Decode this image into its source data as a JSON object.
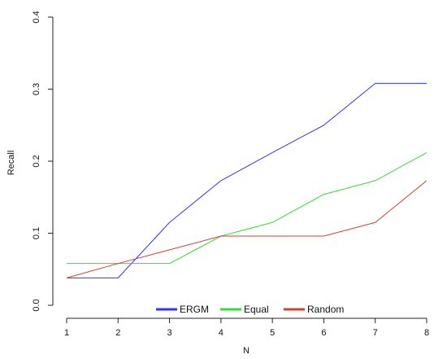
{
  "chart_data": {
    "type": "line",
    "xlabel": "N",
    "ylabel": "Recall",
    "x": [
      1,
      2,
      3,
      4,
      5,
      6,
      7,
      8
    ],
    "x_tick_labels": [
      "1",
      "2",
      "3",
      "4",
      "5",
      "6",
      "7",
      "8"
    ],
    "y_tick_labels": [
      "0.0",
      "0.1",
      "0.2",
      "0.3",
      "0.4"
    ],
    "y_ticks": [
      0.0,
      0.1,
      0.2,
      0.3,
      0.4
    ],
    "xlim": [
      1,
      8
    ],
    "ylim": [
      0.0,
      0.4
    ],
    "grid": false,
    "legend_position": "bottom-center",
    "series": [
      {
        "name": "ERGM",
        "color": "#3333ff",
        "values": [
          0.038,
          0.038,
          0.115,
          0.173,
          0.212,
          0.25,
          0.308,
          0.308
        ]
      },
      {
        "name": "Equal",
        "color": "#33dd33",
        "values": [
          0.058,
          0.058,
          0.058,
          0.096,
          0.115,
          0.154,
          0.173,
          0.212
        ]
      },
      {
        "name": "Random",
        "color": "#cc4433",
        "values": [
          0.038,
          0.058,
          0.077,
          0.096,
          0.096,
          0.096,
          0.115,
          0.173
        ]
      }
    ]
  }
}
